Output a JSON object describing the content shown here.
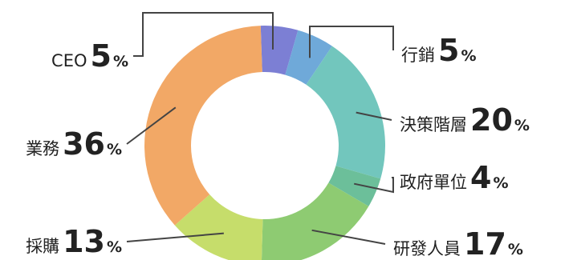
{
  "chart_data": {
    "type": "pie",
    "donut": true,
    "unit": "%",
    "slices": [
      {
        "name": "CEO",
        "value": 5,
        "color": "#7c7fd4"
      },
      {
        "name": "行銷",
        "value": 5,
        "color": "#6fa9d9"
      },
      {
        "name": "決策階層",
        "value": 20,
        "color": "#72c6bd"
      },
      {
        "name": "政府單位",
        "value": 4,
        "color": "#6cbf9a"
      },
      {
        "name": "研發人員",
        "value": 17,
        "color": "#8ecb72"
      },
      {
        "name": "採購",
        "value": 13,
        "color": "#c6dd6b"
      },
      {
        "name": "業務",
        "value": 36,
        "color": "#f2a866"
      }
    ]
  }
}
